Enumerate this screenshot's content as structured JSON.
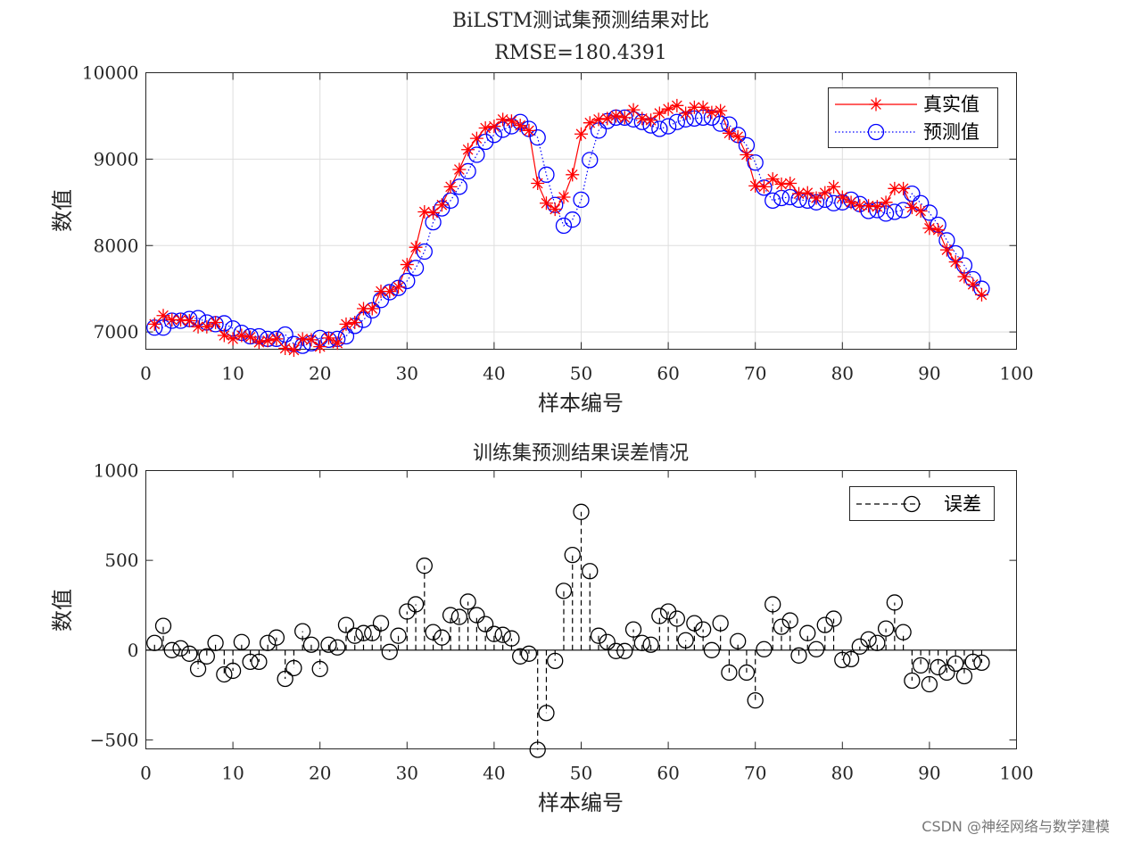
{
  "colors": {
    "actual": "#ff0000",
    "predicted": "#0000ff",
    "error": "#000000",
    "grid": "#dedede"
  },
  "watermark": "CSDN @神经网络与数学建模",
  "chart_data": [
    {
      "type": "line",
      "title": "BiLSTM测试集预测结果对比",
      "subtitle": "RMSE=180.4391",
      "xlabel": "样本编号",
      "ylabel": "数值",
      "xlim": [
        0,
        100
      ],
      "ylim": [
        6800,
        10000
      ],
      "xticks": [
        0,
        10,
        20,
        30,
        40,
        50,
        60,
        70,
        80,
        90,
        100
      ],
      "yticks": [
        7000,
        8000,
        9000,
        10000
      ],
      "grid": true,
      "legend_position": "top-right",
      "series": [
        {
          "name": "真实值",
          "marker": "asterisk",
          "color": "#ff0000",
          "values": [
            7090,
            7190,
            7140,
            7140,
            7130,
            7060,
            7060,
            7110,
            6960,
            6920,
            6960,
            6940,
            6880,
            6900,
            6920,
            6810,
            6790,
            6920,
            6910,
            6830,
            6930,
            6870,
            7090,
            7110,
            7270,
            7270,
            7470,
            7470,
            7520,
            7780,
            7980,
            8390,
            8380,
            8470,
            8680,
            8880,
            9110,
            9240,
            9360,
            9380,
            9460,
            9440,
            9390,
            9330,
            8720,
            8490,
            8420,
            8560,
            8820,
            9290,
            9420,
            9460,
            9470,
            9500,
            9480,
            9570,
            9470,
            9450,
            9530,
            9580,
            9620,
            9530,
            9600,
            9600,
            9540,
            9560,
            9300,
            9260,
            9050,
            8690,
            8680,
            8770,
            8710,
            8720,
            8600,
            8610,
            8550,
            8610,
            8680,
            8560,
            8500,
            8460,
            8460,
            8450,
            8500,
            8660,
            8660,
            8440,
            8400,
            8200,
            8180,
            7950,
            7810,
            7640,
            7550,
            7430
          ]
        },
        {
          "name": "预测值",
          "marker": "circle",
          "color": "#0000ff",
          "values": [
            7050,
            7050,
            7130,
            7130,
            7150,
            7160,
            7110,
            7090,
            7100,
            7040,
            6990,
            6950,
            6950,
            6920,
            6920,
            6970,
            6860,
            6840,
            6870,
            6930,
            6910,
            6920,
            6950,
            7070,
            7140,
            7250,
            7370,
            7460,
            7510,
            7590,
            7740,
            7930,
            8270,
            8430,
            8520,
            8680,
            8860,
            9050,
            9200,
            9280,
            9340,
            9380,
            9430,
            9350,
            9250,
            8820,
            8470,
            8230,
            8300,
            8530,
            8990,
            9330,
            9440,
            9480,
            9480,
            9460,
            9430,
            9390,
            9350,
            9380,
            9430,
            9460,
            9470,
            9480,
            9480,
            9410,
            9400,
            9280,
            9160,
            8960,
            8670,
            8520,
            8550,
            8560,
            8530,
            8520,
            8500,
            8530,
            8490,
            8500,
            8530,
            8480,
            8400,
            8410,
            8370,
            8390,
            8410,
            8600,
            8490,
            8380,
            8240,
            8060,
            7910,
            7770,
            7610,
            7500
          ]
        }
      ]
    },
    {
      "type": "stem",
      "title": "训练集预测结果误差情况",
      "xlabel": "样本编号",
      "ylabel": "数值",
      "xlim": [
        0,
        100
      ],
      "ylim": [
        -550,
        1000
      ],
      "xticks": [
        0,
        10,
        20,
        30,
        40,
        50,
        60,
        70,
        80,
        90,
        100
      ],
      "yticks": [
        -500,
        0,
        500,
        1000
      ],
      "grid": false,
      "legend_position": "top-right",
      "series": [
        {
          "name": "误差",
          "marker": "circle",
          "color": "#000000",
          "values": [
            40,
            135,
            0,
            10,
            -20,
            -105,
            -35,
            40,
            -135,
            -115,
            45,
            -65,
            -65,
            40,
            70,
            -160,
            -100,
            105,
            30,
            -105,
            30,
            15,
            140,
            80,
            95,
            95,
            150,
            -10,
            80,
            215,
            255,
            470,
            100,
            70,
            195,
            185,
            270,
            195,
            145,
            90,
            85,
            65,
            -35,
            -20,
            -555,
            -350,
            -60,
            330,
            530,
            770,
            440,
            80,
            45,
            -5,
            -5,
            115,
            40,
            30,
            190,
            215,
            175,
            55,
            150,
            115,
            0,
            150,
            -125,
            50,
            -125,
            -280,
            5,
            255,
            130,
            165,
            -30,
            95,
            5,
            140,
            175,
            -55,
            -50,
            20,
            60,
            40,
            120,
            265,
            100,
            -170,
            -85,
            -190,
            -95,
            -125,
            -75,
            -145,
            -65,
            -70
          ]
        }
      ]
    }
  ]
}
